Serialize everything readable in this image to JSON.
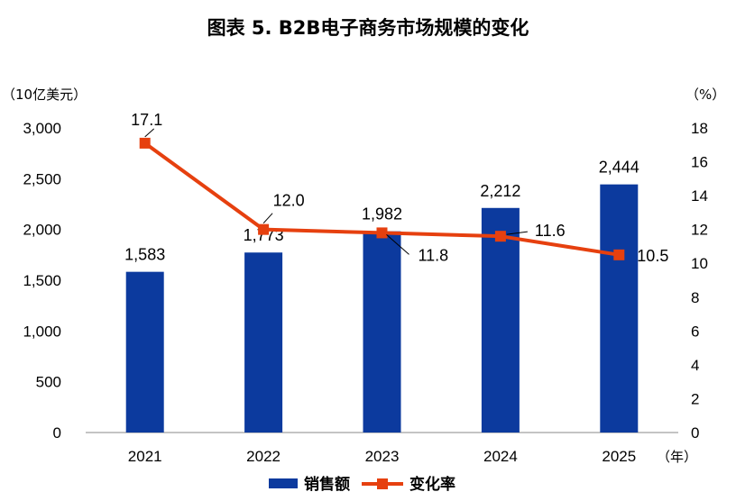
{
  "chart_data": {
    "type": "bar+line",
    "title": "图表  5. B2B电子商务市场规模的变化",
    "categories": [
      "2021",
      "2022",
      "2023",
      "2024",
      "2025"
    ],
    "x_unit": "（年）",
    "series": [
      {
        "name": "销售额",
        "type": "bar",
        "axis": "left",
        "values": [
          1583,
          1773,
          1982,
          2212,
          2444
        ],
        "labels": [
          "1,583",
          "1,773",
          "1,982",
          "2,212",
          "2,444"
        ]
      },
      {
        "name": "变化率",
        "type": "line",
        "axis": "right",
        "values": [
          17.1,
          12.0,
          11.8,
          11.6,
          10.5
        ],
        "labels": [
          "17.1",
          "12.0",
          "11.8",
          "11.6",
          "10.5"
        ]
      }
    ],
    "y_left": {
      "unit": "（10亿美元）",
      "ylim": [
        0,
        3000
      ],
      "ticks": [
        "0",
        "500",
        "1,000",
        "1,500",
        "2,000",
        "2,500",
        "3,000"
      ],
      "tick_values": [
        0,
        500,
        1000,
        1500,
        2000,
        2500,
        3000
      ]
    },
    "y_right": {
      "unit": "（%）",
      "ylim": [
        0,
        18
      ],
      "ticks": [
        "0",
        "2",
        "4",
        "6",
        "8",
        "10",
        "12",
        "14",
        "16",
        "18"
      ],
      "tick_values": [
        0,
        2,
        4,
        6,
        8,
        10,
        12,
        14,
        16,
        18
      ]
    },
    "legend_position": "bottom",
    "colors": {
      "bar": "#0C3A9E",
      "line": "#E6400F",
      "marker": "#E6400F",
      "axis": "#888888"
    }
  }
}
